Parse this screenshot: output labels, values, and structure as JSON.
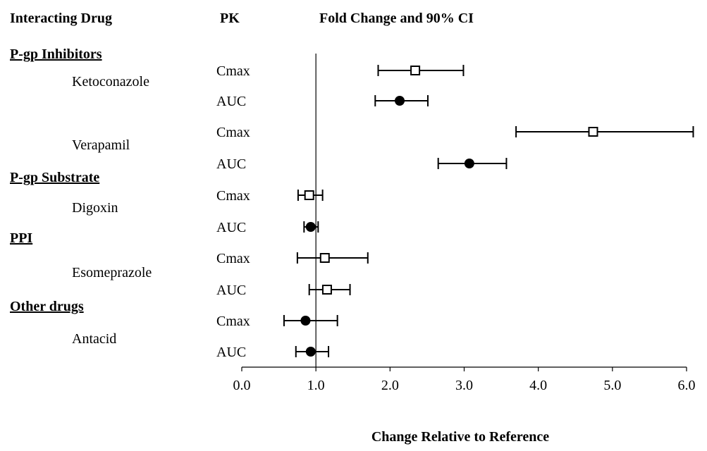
{
  "headers": {
    "drug": "Interacting Drug",
    "pk": "PK",
    "effect": "Fold Change and 90% CI"
  },
  "categories": [
    {
      "label": "P-gp Inhibitors",
      "drugs": [
        "Ketoconazole",
        "Verapamil"
      ]
    },
    {
      "label": "P-gp Substrate",
      "drugs": [
        "Digoxin"
      ]
    },
    {
      "label": "PPI",
      "drugs": [
        "Esomeprazole"
      ]
    },
    {
      "label": "Other drugs",
      "drugs": [
        "Antacid"
      ]
    }
  ],
  "chart_data": {
    "type": "scatter",
    "title": "",
    "xlabel": "Change Relative to Reference",
    "ylabel": "",
    "xlim": [
      0,
      6.0
    ],
    "xticks": [
      0.0,
      1.0,
      2.0,
      3.0,
      4.0,
      5.0,
      6.0
    ],
    "xtick_labels": [
      "0.0",
      "1.0",
      "2.0",
      "3.0",
      "4.0",
      "5.0",
      "6.0"
    ],
    "reference_line": 1.0,
    "grid": false,
    "rows": [
      {
        "drug": "Ketoconazole",
        "pk": "Cmax",
        "estimate": 2.34,
        "lower": 1.84,
        "upper": 2.99,
        "marker": "open-square"
      },
      {
        "drug": "Ketoconazole",
        "pk": "AUC",
        "estimate": 2.13,
        "lower": 1.8,
        "upper": 2.51,
        "marker": "filled-circle"
      },
      {
        "drug": "Verapamil",
        "pk": "Cmax",
        "estimate": 4.74,
        "lower": 3.7,
        "upper": 6.09,
        "marker": "open-square"
      },
      {
        "drug": "Verapamil",
        "pk": "AUC",
        "estimate": 3.07,
        "lower": 2.65,
        "upper": 3.57,
        "marker": "filled-circle"
      },
      {
        "drug": "Digoxin",
        "pk": "Cmax",
        "estimate": 0.91,
        "lower": 0.76,
        "upper": 1.09,
        "marker": "open-square"
      },
      {
        "drug": "Digoxin",
        "pk": "AUC",
        "estimate": 0.93,
        "lower": 0.84,
        "upper": 1.03,
        "marker": "filled-circle"
      },
      {
        "drug": "Esomeprazole",
        "pk": "Cmax",
        "estimate": 1.12,
        "lower": 0.75,
        "upper": 1.7,
        "marker": "open-square"
      },
      {
        "drug": "Esomeprazole",
        "pk": "AUC",
        "estimate": 1.15,
        "lower": 0.91,
        "upper": 1.46,
        "marker": "open-square"
      },
      {
        "drug": "Antacid",
        "pk": "Cmax",
        "estimate": 0.86,
        "lower": 0.57,
        "upper": 1.29,
        "marker": "filled-circle"
      },
      {
        "drug": "Antacid",
        "pk": "AUC",
        "estimate": 0.93,
        "lower": 0.73,
        "upper": 1.17,
        "marker": "filled-circle"
      }
    ]
  }
}
